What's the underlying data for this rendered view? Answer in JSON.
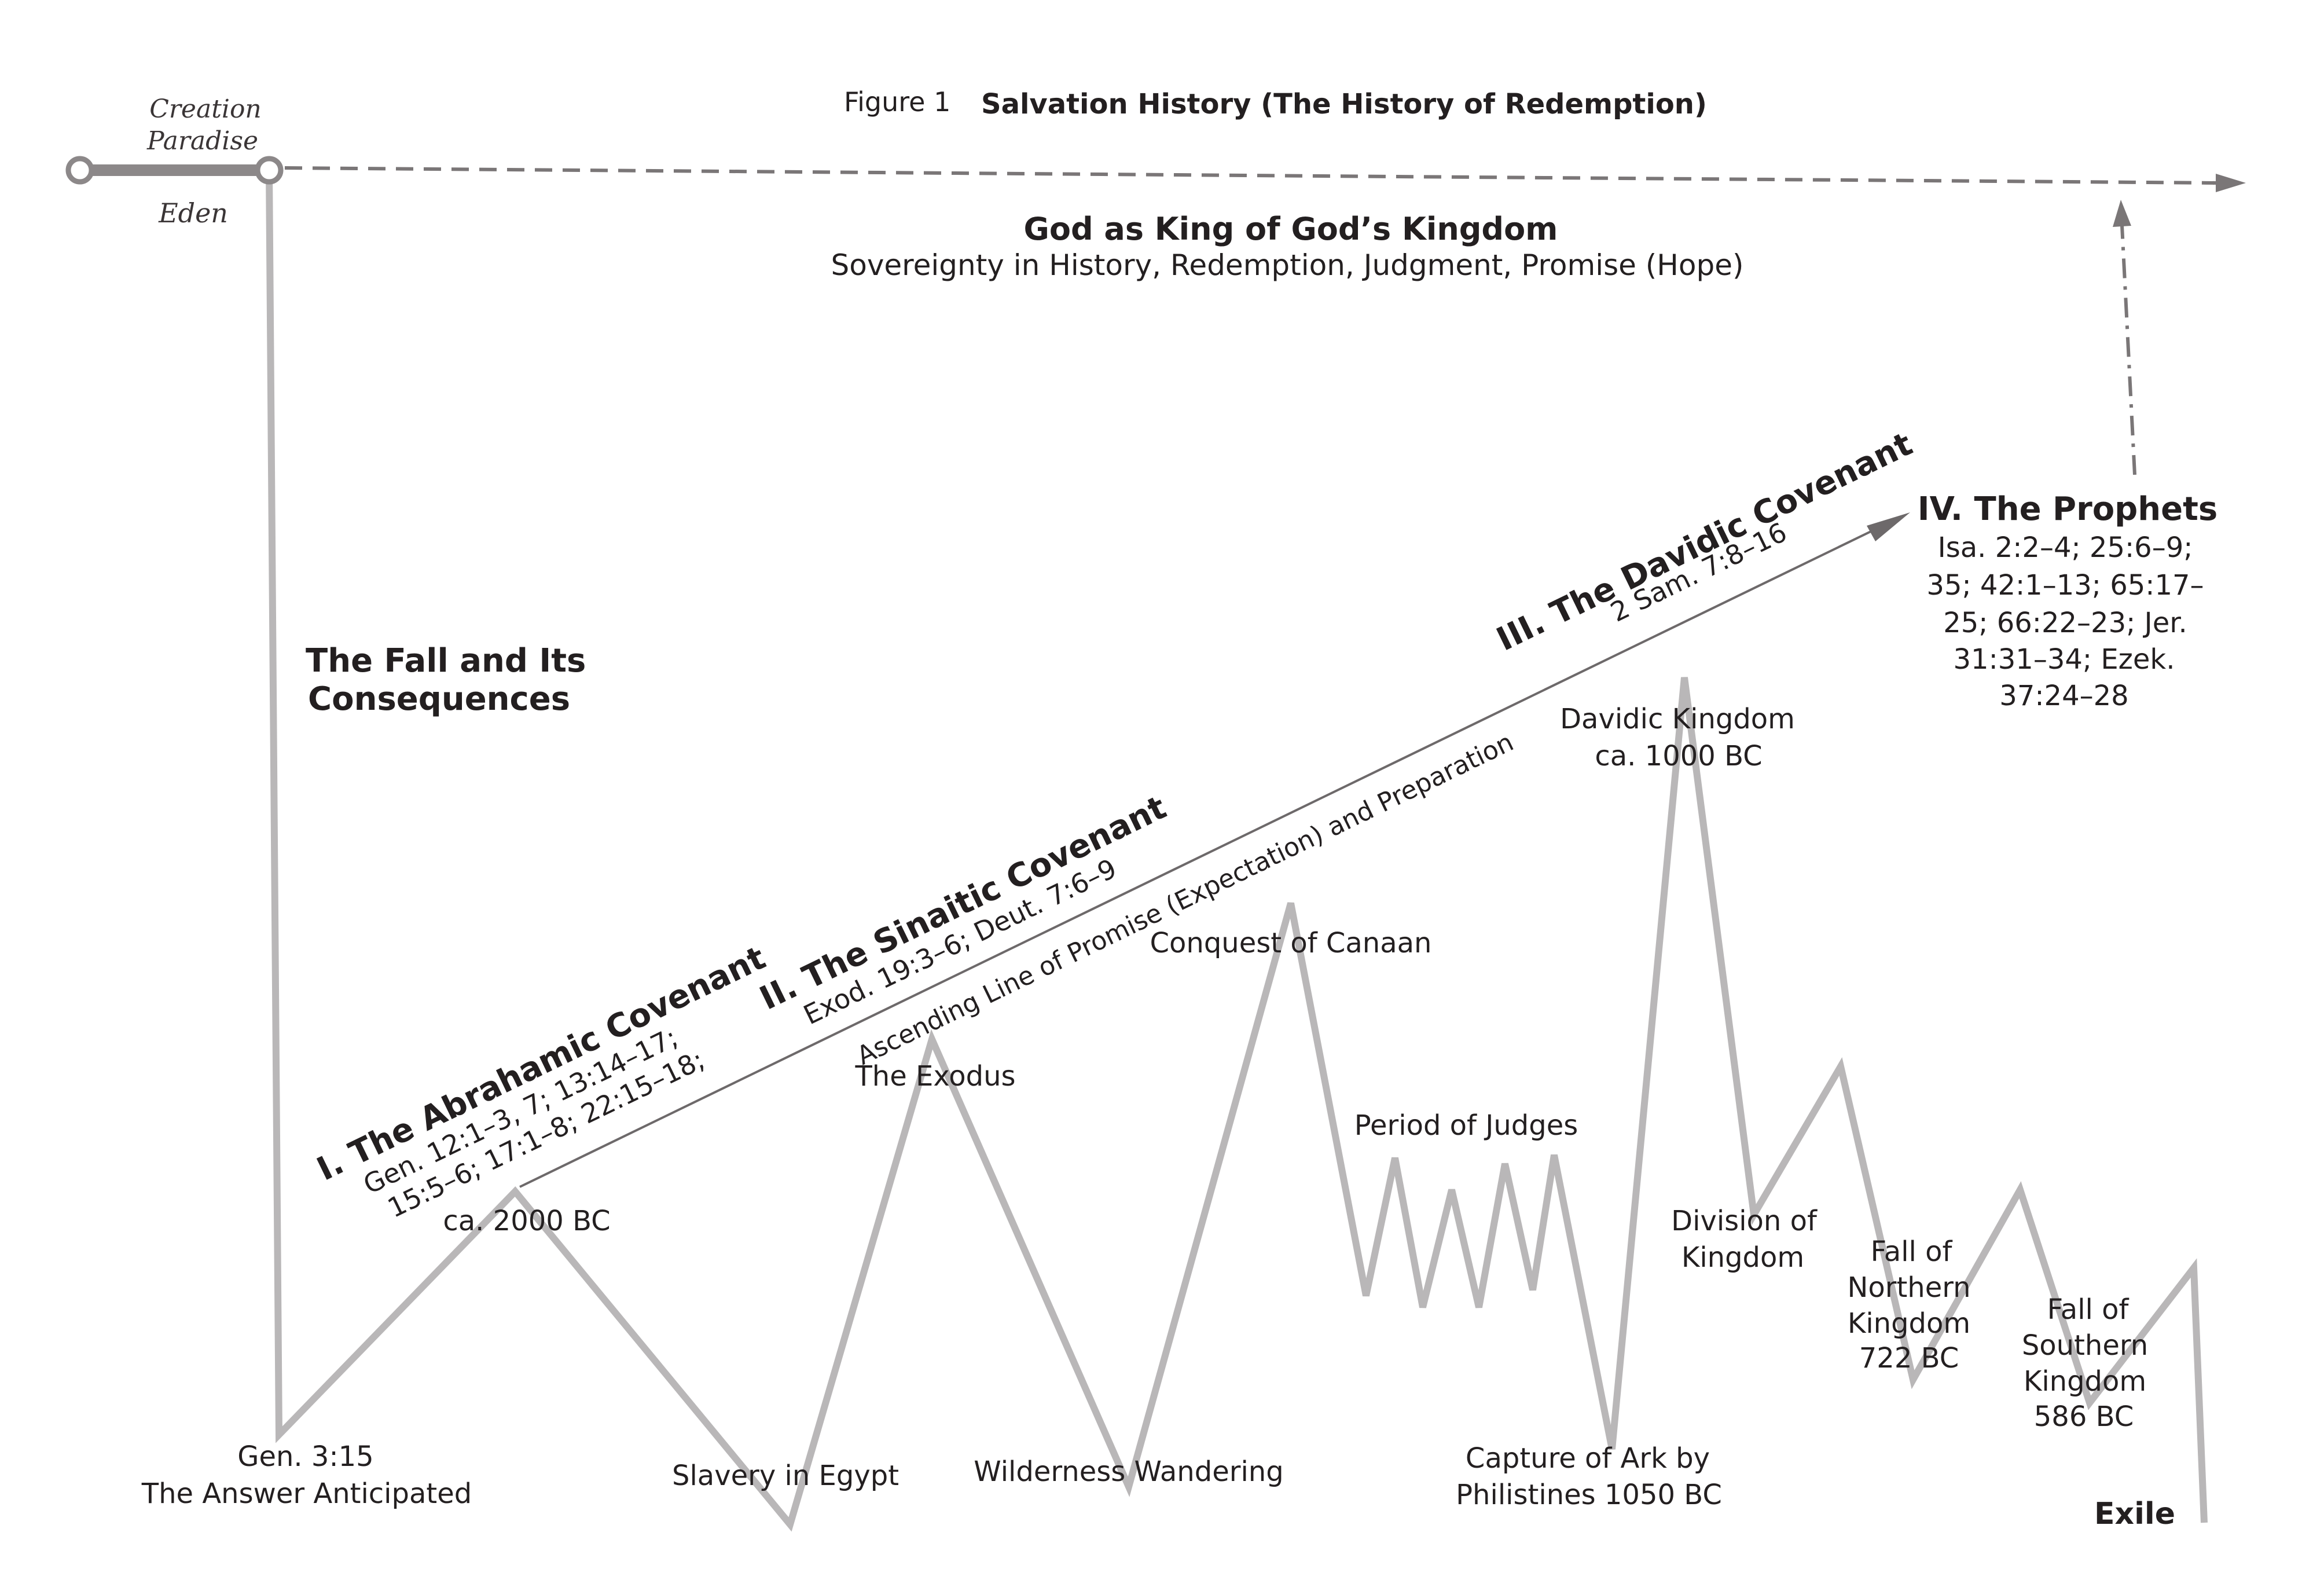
{
  "figure": {
    "number": "Figure 1",
    "title": "Salvation History (The History of Redemption)"
  },
  "eden": {
    "creation": "Creation",
    "paradise": "Paradise",
    "eden": "Eden"
  },
  "kingdom": {
    "heading": "God as King of God’s Kingdom",
    "subheading": "Sovereignty in History, Redemption, Judgment, Promise (Hope)"
  },
  "fall": {
    "line1": "The Fall and Its",
    "line2": "Consequences"
  },
  "ascending_line": "Ascending Line of Promise (Expectation) and Preparation",
  "covenants": {
    "abrahamic": {
      "title": "I. The Abrahamic Covenant",
      "refs1": "Gen. 12:1–3, 7; 13:14–17;",
      "refs2": "15:5–6; 17:1–8; 22:15–18;",
      "date": "ca. 2000 BC"
    },
    "sinaitic": {
      "title": "II. The Sinaitic Covenant",
      "refs": "Exod. 19:3–6; Deut. 7:6–9"
    },
    "davidic": {
      "title": "III. The Davidic Covenant",
      "refs": "2 Sam. 7:8–16"
    }
  },
  "prophets": {
    "title": "IV. The Prophets",
    "refs": [
      "Isa. 2:2–4; 25:6–9;",
      "35; 42:1–13; 65:17–",
      "25; 66:22–23; Jer.",
      "31:31–34; Ezek.",
      "37:24–28"
    ]
  },
  "events": {
    "gen315": [
      "Gen. 3:15",
      "The Answer Anticipated"
    ],
    "slavery": "Slavery in Egypt",
    "exodus": "The Exodus",
    "wilderness": "Wilderness Wandering",
    "conquest": "Conquest of Canaan",
    "judges": "Period of Judges",
    "capture": [
      "Capture of Ark by",
      "Philistines 1050 BC"
    ],
    "davidic_kingdom": [
      "Davidic Kingdom",
      "ca. 1000 BC"
    ],
    "division": [
      "Division of",
      "Kingdom"
    ],
    "fall_northern": [
      "Fall of",
      "Northern",
      "Kingdom",
      "722 BC"
    ],
    "fall_southern": [
      "Fall of",
      "Southern",
      "Kingdom",
      "586 BC"
    ],
    "exile": "Exile"
  },
  "colors": {
    "text": "#231f20",
    "zigzag": "#b9b7b8",
    "eden_bar": "#8c8889",
    "dashed": "#7a7677",
    "thin_line": "#6d696a"
  }
}
